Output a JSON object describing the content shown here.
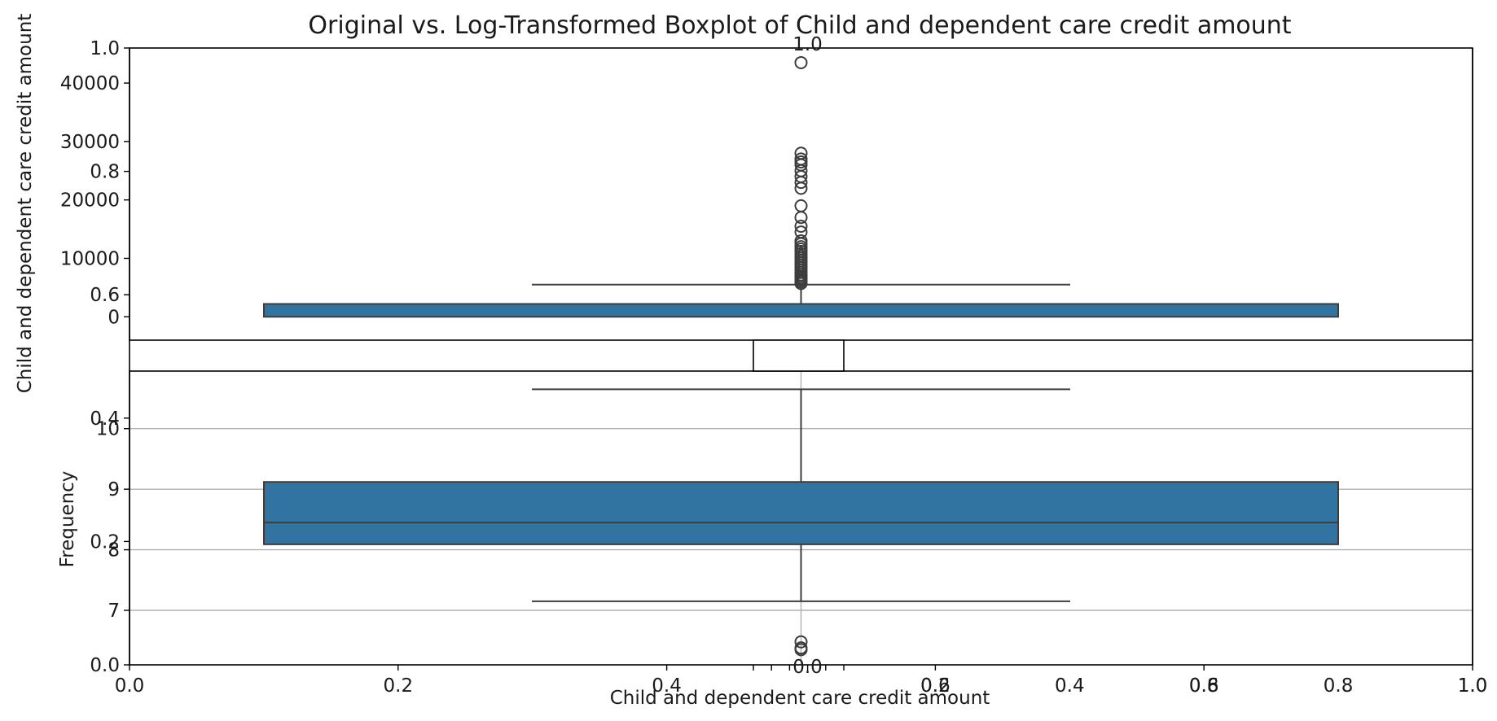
{
  "chart_data": {
    "type": "boxplot",
    "title": "Original vs. Log-Transformed Boxplot of Child and dependent care credit amount",
    "overlay_axis": {
      "xlabel": "Child and dependent care credit amount",
      "ylabel": "Frequency",
      "xticks_left": [
        "0.0",
        "0.2",
        "0.4",
        "0.6",
        "0.8",
        "1.0"
      ],
      "xticks_right": [
        "0.0",
        "0.2",
        "0.4",
        "0.6",
        "0.8",
        "1.0"
      ],
      "yticks": [
        "0.0",
        "0.2",
        "0.4",
        "0.6",
        "0.8",
        "1.0"
      ],
      "top_tick": "1.0"
    },
    "original": {
      "ylabel": "Child and dependent care credit amount",
      "yticks": [
        "0",
        "10000",
        "20000",
        "30000",
        "40000"
      ],
      "ylim": [
        -4000,
        46000
      ],
      "box": {
        "whisker_low": 0,
        "q1": 0,
        "median": 0,
        "q3": 2200,
        "whisker_high": 5500
      },
      "outliers": [
        5700,
        6000,
        6300,
        6600,
        6900,
        7200,
        7600,
        8000,
        8400,
        8800,
        9200,
        9600,
        10000,
        10400,
        10800,
        11200,
        11600,
        12000,
        12500,
        13000,
        14500,
        15500,
        17000,
        19000,
        22000,
        23000,
        24000,
        25000,
        26000,
        26500,
        27000,
        28000,
        43500
      ]
    },
    "log_transformed": {
      "yticks": [
        "7",
        "8",
        "9",
        "10"
      ],
      "ylim": [
        6.1,
        10.95
      ],
      "grid": true,
      "box": {
        "whisker_low": 7.15,
        "q1": 8.09,
        "median": 8.45,
        "q3": 9.12,
        "whisker_high": 10.65
      },
      "outliers": [
        6.35,
        6.38,
        6.48
      ]
    }
  }
}
